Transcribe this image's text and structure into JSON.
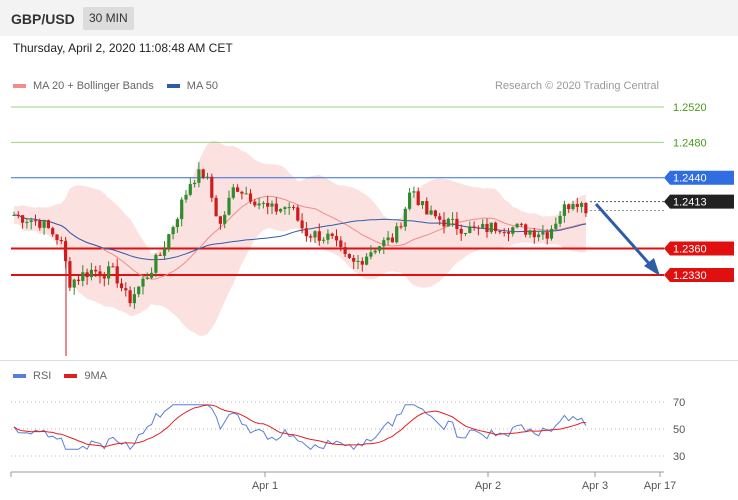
{
  "header": {
    "symbol": "GBP/USD",
    "timeframe": "30 MIN"
  },
  "datetime": "Thursday, April 2, 2020 11:08:48 AM CET",
  "credit": "Research © 2020 Trading Central",
  "price_legend": [
    {
      "label": "MA 20 + Bollinger Bands",
      "color": "#f28b8b"
    },
    {
      "label": "MA 50",
      "color": "#2e5da8"
    }
  ],
  "rsi_legend": [
    {
      "label": "RSI",
      "color": "#5b7fd8"
    },
    {
      "label": "9MA",
      "color": "#e02020"
    }
  ],
  "chart_data": {
    "type": "candlestick",
    "ylim": [
      1.2162,
      1.2546
    ],
    "y_ticks": [
      "1.2520",
      "1.2480"
    ],
    "levels": [
      {
        "label": "1.2520",
        "value": 1.252,
        "kind": "target",
        "color": "#9fd27f"
      },
      {
        "label": "1.2480",
        "value": 1.248,
        "kind": "target",
        "color": "#9fd27f"
      },
      {
        "label": "1.2440",
        "value": 1.244,
        "kind": "resistance",
        "color": "#2f6de0"
      },
      {
        "label": "1.2413",
        "value": 1.2413,
        "kind": "last",
        "color": "#222222"
      },
      {
        "label": "1.2360",
        "value": 1.236,
        "kind": "support",
        "color": "#e01010"
      },
      {
        "label": "1.2330",
        "value": 1.233,
        "kind": "support",
        "color": "#e01010"
      }
    ],
    "x_labels": [
      "Apr 1",
      "Apr 2",
      "Apr 3",
      "Apr 17"
    ],
    "rsi": {
      "ylim": [
        20,
        80
      ],
      "y_ticks": [
        "70",
        "50",
        "30"
      ]
    },
    "up_color": "#2e8b2e",
    "down_color": "#cc1c1c"
  }
}
